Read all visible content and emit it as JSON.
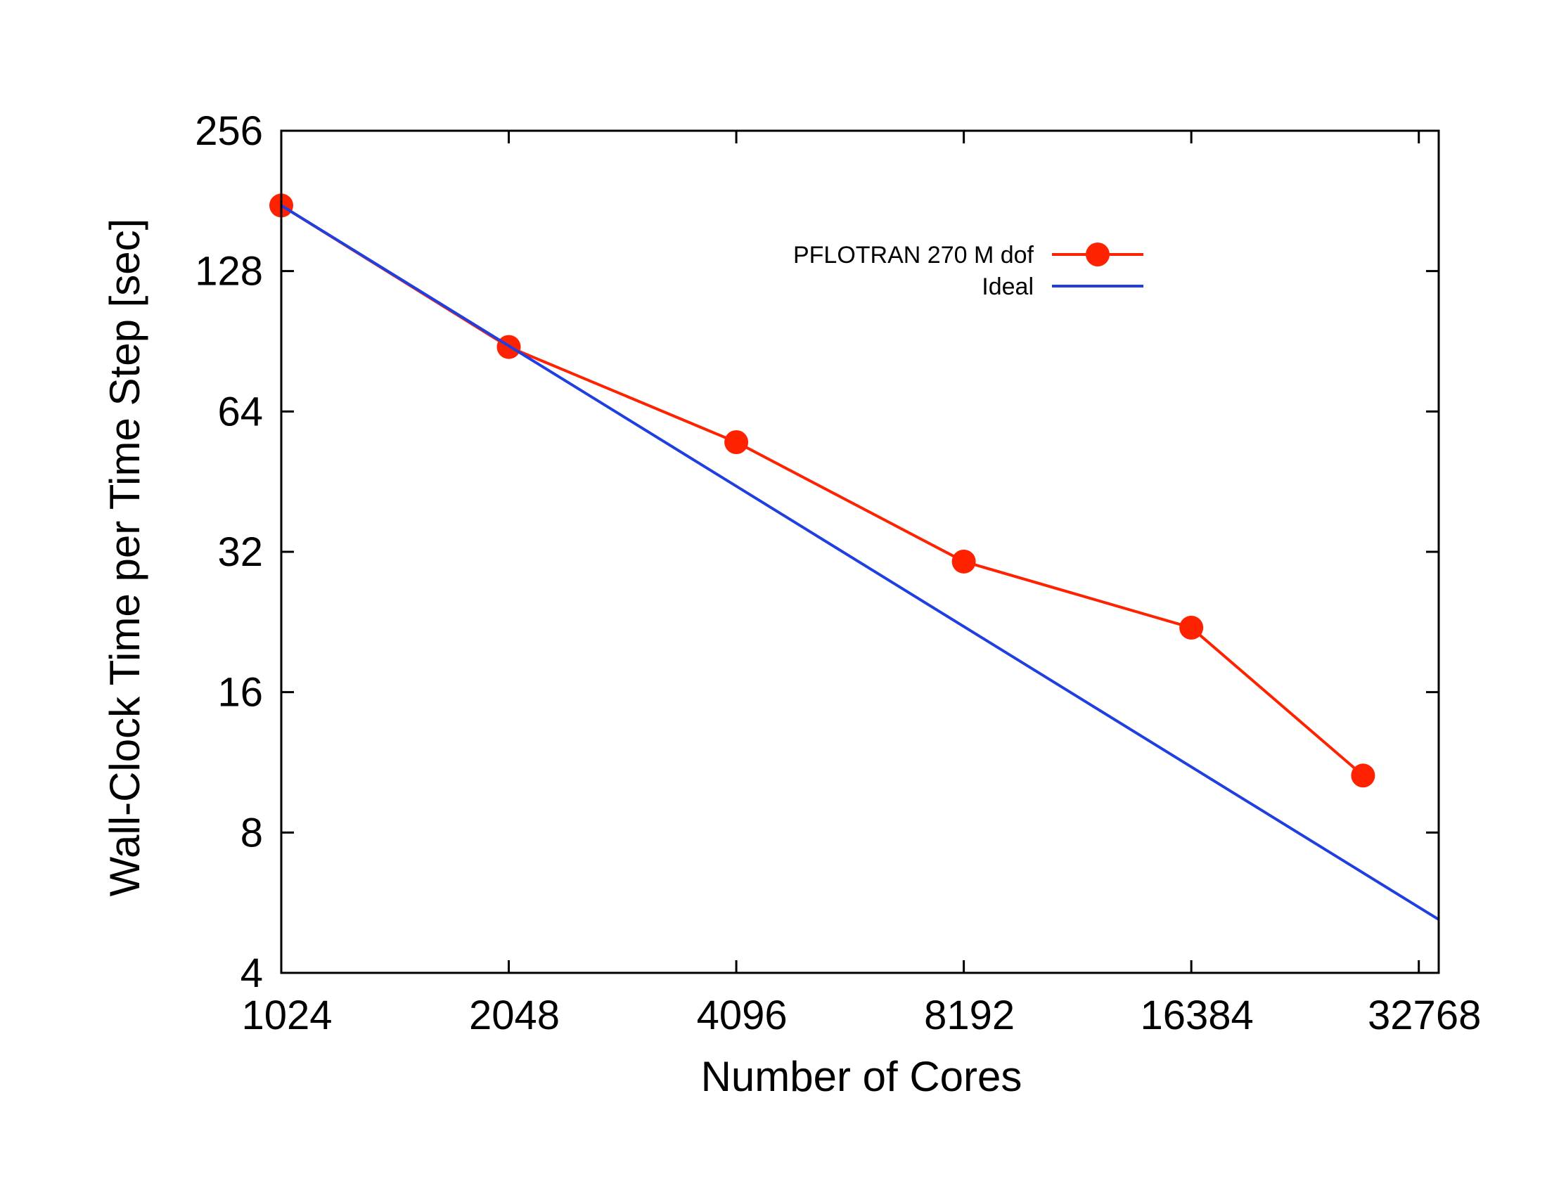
{
  "chart_data": {
    "type": "line",
    "title": "",
    "xlabel": "Number of Cores",
    "ylabel": "Wall-Clock Time per Time Step [sec]",
    "x_scale": "log2",
    "y_scale": "log2",
    "xlim": [
      1024,
      34816
    ],
    "ylim": [
      4,
      256
    ],
    "x_ticks": [
      1024,
      2048,
      4096,
      8192,
      16384,
      32768
    ],
    "x_tick_labels": [
      "1024",
      "2048",
      "4096",
      "8192",
      "16384",
      "32768"
    ],
    "y_ticks": [
      4,
      8,
      16,
      32,
      64,
      128,
      256
    ],
    "y_tick_labels": [
      "4",
      "8",
      "16",
      "32",
      "64",
      "128",
      "256"
    ],
    "grid": false,
    "legend_position": "top-right",
    "series": [
      {
        "name": "PFLOTRAN 270 M dof",
        "color": "#ff2200",
        "marker": "circle",
        "x": [
          1024,
          2048,
          4096,
          8192,
          16384,
          27648
        ],
        "y": [
          177,
          88,
          55,
          30.5,
          22,
          10.6
        ]
      },
      {
        "name": "Ideal",
        "color": "#1f3fe0",
        "marker": "none",
        "x": [
          1024,
          34816
        ],
        "y": [
          177,
          5.206
        ]
      }
    ]
  }
}
